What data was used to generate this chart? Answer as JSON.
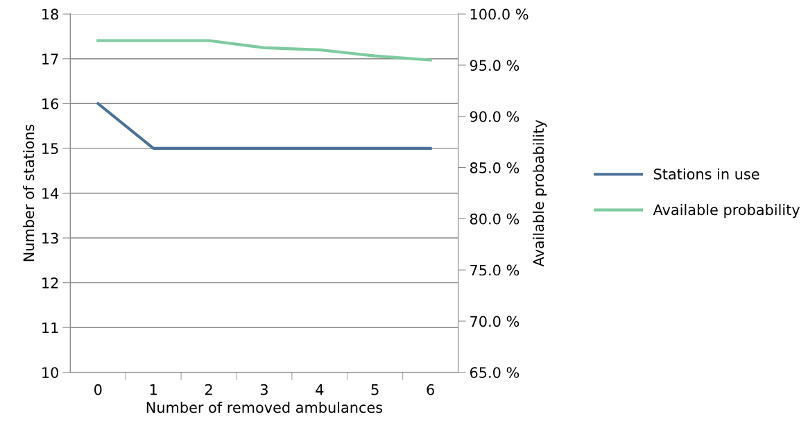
{
  "chart_data": {
    "type": "line",
    "xlabel": "Number of removed ambulances",
    "ylabel": "Number of stations",
    "y2label": "Available probability",
    "categories": [
      "0",
      "1",
      "2",
      "3",
      "4",
      "5",
      "6"
    ],
    "series": [
      {
        "name": "Stations in use",
        "color": "#4a7298",
        "values": [
          16,
          15,
          15,
          15,
          15,
          15,
          15
        ]
      },
      {
        "name": "Available probability",
        "color": "#7dcb9e",
        "axis": "y2",
        "values": [
          97.4,
          97.4,
          97.4,
          96.7,
          96.5,
          95.9,
          95.5
        ]
      }
    ],
    "ylim": [
      10,
      18
    ],
    "yticks": [
      10,
      11,
      12,
      13,
      14,
      15,
      16,
      17,
      18
    ],
    "y2lim": [
      65,
      100
    ],
    "y2ticks": [
      {
        "value": 65,
        "label": "65.0 %"
      },
      {
        "value": 70,
        "label": "70.0 %"
      },
      {
        "value": 75,
        "label": "75.0 %"
      },
      {
        "value": 80,
        "label": "80.0 %"
      },
      {
        "value": 85,
        "label": "85.0 %"
      },
      {
        "value": 90,
        "label": "90.0 %"
      },
      {
        "value": 95,
        "label": "95.0 %"
      },
      {
        "value": 100,
        "label": "100.0 %"
      }
    ],
    "grid": "y",
    "legend": "right",
    "marker": "none",
    "line_style": "solid"
  }
}
